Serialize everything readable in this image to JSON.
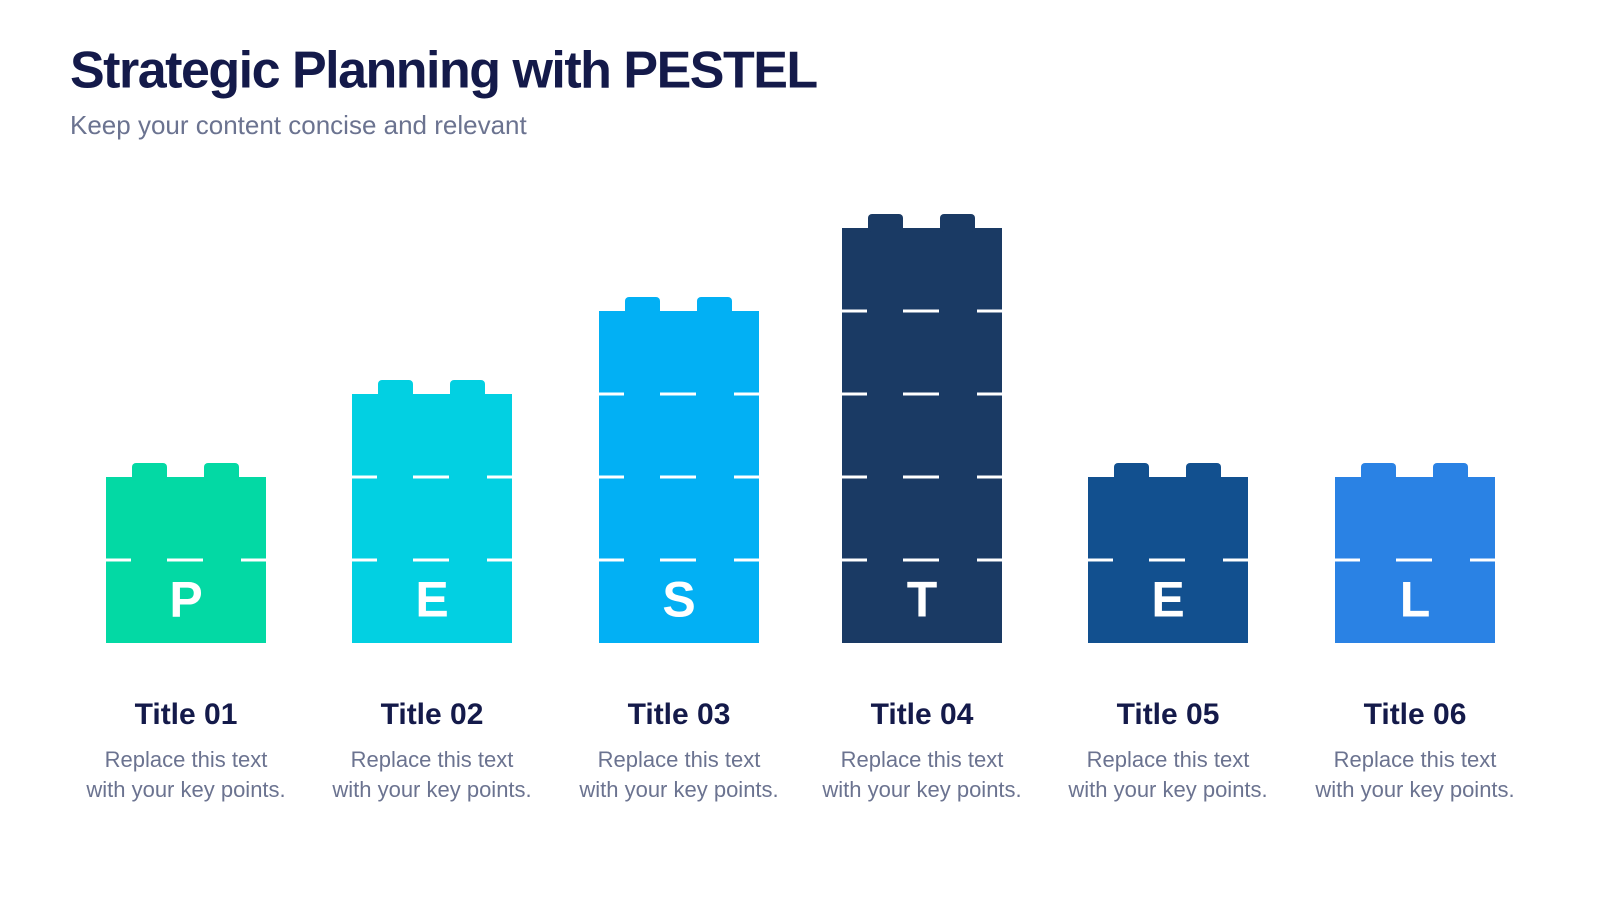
{
  "header": {
    "title": "Strategic Planning with PESTEL",
    "subtitle": "Keep your content concise and relevant"
  },
  "columns": [
    {
      "letter": "P",
      "title": "Title 01",
      "lines": [
        "Replace this text",
        "with your key points."
      ]
    },
    {
      "letter": "E",
      "title": "Title 02",
      "lines": [
        "Replace this text",
        "with your key points."
      ]
    },
    {
      "letter": "S",
      "title": "Title 03",
      "lines": [
        "Replace this text",
        "with your key points."
      ]
    },
    {
      "letter": "T",
      "title": "Title 04",
      "lines": [
        "Replace this text",
        "with your key points."
      ]
    },
    {
      "letter": "E",
      "title": "Title 05",
      "lines": [
        "Replace this text",
        "with your key points."
      ]
    },
    {
      "letter": "L",
      "title": "Title 06",
      "lines": [
        "Replace this text",
        "with your key points."
      ]
    }
  ]
}
